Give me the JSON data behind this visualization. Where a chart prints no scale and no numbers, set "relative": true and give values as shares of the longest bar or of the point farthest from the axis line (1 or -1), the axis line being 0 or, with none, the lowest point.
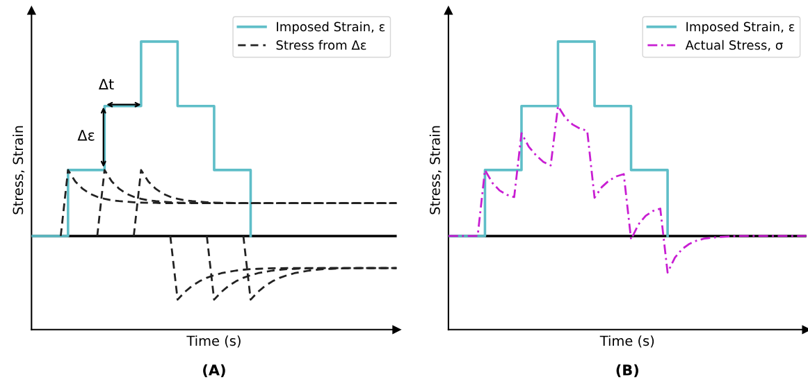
{
  "chart_data": [
    {
      "type": "step",
      "title": "(A)",
      "xlabel": "Time (s)",
      "ylabel": "Stress, Strain",
      "relative": true,
      "tick_labels": false,
      "legend": "top right",
      "categories": [
        null,
        null,
        null,
        null,
        null,
        null,
        null,
        null,
        null,
        null,
        null,
        null,
        null,
        null,
        null,
        null,
        null,
        null,
        null,
        null,
        null,
        null,
        null,
        null,
        null,
        null,
        null,
        null,
        null,
        null,
        null,
        null,
        null,
        null,
        null,
        null,
        null,
        null,
        null,
        null,
        null,
        null,
        null,
        null,
        null,
        null,
        null,
        null,
        null,
        null,
        null
      ],
      "series": [
        {
          "name": "Imposed Strain, ε",
          "color": "#5fbec8",
          "line_style": "solid",
          "values": [
            0.325,
            0.325,
            0.325,
            0.325,
            0.325,
            0.554,
            0.554,
            0.554,
            0.554,
            0.554,
            0.776,
            0.776,
            0.776,
            0.776,
            0.776,
            1.0,
            1.0,
            1.0,
            1.0,
            1.0,
            0.776,
            0.776,
            0.776,
            0.776,
            0.776,
            0.554,
            0.554,
            0.554,
            0.554,
            0.554,
            0.325,
            null,
            null,
            null,
            null,
            null,
            null,
            null,
            null,
            null,
            null,
            null,
            null,
            null,
            null,
            null,
            null,
            null,
            null,
            null,
            null
          ]
        },
        {
          "name": "Stress from Δε",
          "color": "#222222",
          "type": "line",
          "line_style": "dashed",
          "values": [
            null,
            null,
            null,
            null,
            0.325,
            0.554,
            0.514,
            0.489,
            0.472,
            0.461,
            0.454,
            0.449,
            0.446,
            0.444,
            0.442,
            0.441,
            0.44,
            0.44,
            0.439,
            0.439,
            0.439,
            0.439,
            0.439,
            0.439,
            0.439,
            0.439,
            0.439,
            0.439,
            0.439,
            0.439,
            0.439,
            0.439,
            0.439,
            0.439,
            0.439,
            0.439,
            0.439,
            0.439,
            0.439,
            0.439,
            0.439,
            0.439,
            0.439,
            0.439,
            0.439,
            0.439,
            0.439,
            0.439,
            0.439,
            0.439,
            0.439
          ]
        },
        {
          "color": "#222222",
          "type": "line",
          "line_style": "dashed",
          "values": [
            null,
            null,
            null,
            null,
            null,
            null,
            null,
            null,
            null,
            0.325,
            0.554,
            0.514,
            0.489,
            0.472,
            0.461,
            0.454,
            0.449,
            0.446,
            0.444,
            0.442,
            0.441,
            0.44,
            0.44,
            0.439,
            0.439,
            0.439,
            0.439,
            0.439,
            0.439,
            0.439,
            0.439,
            0.439,
            0.439,
            0.439,
            0.439,
            0.439,
            0.439,
            0.439,
            0.439,
            0.439,
            0.439,
            0.439,
            0.439,
            0.439,
            0.439,
            0.439,
            0.439,
            0.439,
            0.439,
            0.439,
            0.439
          ]
        },
        {
          "color": "#222222",
          "type": "line",
          "line_style": "dashed",
          "values": [
            null,
            null,
            null,
            null,
            null,
            null,
            null,
            null,
            null,
            null,
            null,
            null,
            null,
            null,
            0.325,
            0.554,
            0.514,
            0.489,
            0.472,
            0.461,
            0.454,
            0.449,
            0.446,
            0.444,
            0.442,
            0.441,
            0.44,
            0.44,
            0.439,
            0.439,
            0.439,
            0.439,
            0.439,
            0.439,
            0.439,
            0.439,
            0.439,
            0.439,
            0.439,
            0.439,
            0.439,
            0.439,
            0.439,
            0.439,
            0.439,
            0.439,
            0.439,
            0.439,
            0.439,
            0.439,
            0.439
          ]
        },
        {
          "color": "#222222",
          "type": "line",
          "line_style": "dashed",
          "values": [
            null,
            null,
            null,
            null,
            null,
            null,
            null,
            null,
            null,
            null,
            null,
            null,
            null,
            null,
            null,
            null,
            null,
            null,
            null,
            0.325,
            0.104,
            0.131,
            0.152,
            0.168,
            0.18,
            0.189,
            0.196,
            0.201,
            0.205,
            0.208,
            0.21,
            0.211,
            0.212,
            0.213,
            0.213,
            0.214,
            0.214,
            0.214,
            0.214,
            0.214,
            0.214,
            0.214,
            0.214,
            0.214,
            0.214,
            0.214,
            0.214,
            0.214,
            0.214,
            0.214,
            0.214
          ]
        },
        {
          "color": "#222222",
          "type": "line",
          "line_style": "dashed",
          "values": [
            null,
            null,
            null,
            null,
            null,
            null,
            null,
            null,
            null,
            null,
            null,
            null,
            null,
            null,
            null,
            null,
            null,
            null,
            null,
            null,
            null,
            null,
            null,
            null,
            0.325,
            0.104,
            0.131,
            0.152,
            0.168,
            0.18,
            0.189,
            0.196,
            0.201,
            0.205,
            0.208,
            0.21,
            0.211,
            0.212,
            0.213,
            0.213,
            0.214,
            0.214,
            0.214,
            0.214,
            0.214,
            0.214,
            0.214,
            0.214,
            0.214,
            0.214,
            0.214
          ]
        },
        {
          "color": "#222222",
          "type": "line",
          "line_style": "dashed",
          "values": [
            null,
            null,
            null,
            null,
            null,
            null,
            null,
            null,
            null,
            null,
            null,
            null,
            null,
            null,
            null,
            null,
            null,
            null,
            null,
            null,
            null,
            null,
            null,
            null,
            null,
            null,
            null,
            null,
            null,
            0.325,
            0.104,
            0.131,
            0.152,
            0.168,
            0.18,
            0.189,
            0.196,
            0.201,
            0.205,
            0.208,
            0.21,
            0.211,
            0.212,
            0.213,
            0.213,
            0.214,
            0.214,
            0.214,
            0.214,
            0.214,
            0.214
          ]
        }
      ],
      "ref_lines": [
        {
          "axis": "y",
          "value": 0.325,
          "color": "#000000"
        }
      ],
      "annotations": [
        "Δt",
        "Δε"
      ]
    },
    {
      "type": "step",
      "title": "(B)",
      "xlabel": "Time (s)",
      "ylabel": "Stress, Strain",
      "relative": true,
      "tick_labels": false,
      "legend": "top right",
      "categories": [
        null,
        null,
        null,
        null,
        null,
        null,
        null,
        null,
        null,
        null,
        null,
        null,
        null,
        null,
        null,
        null,
        null,
        null,
        null,
        null,
        null,
        null,
        null,
        null,
        null,
        null,
        null,
        null,
        null,
        null,
        null,
        null,
        null,
        null,
        null,
        null,
        null,
        null,
        null,
        null,
        null,
        null,
        null,
        null,
        null,
        null,
        null,
        null,
        null,
        null
      ],
      "series": [
        {
          "name": "Imposed Strain, ε",
          "color": "#5fbec8",
          "line_style": "solid",
          "values": [
            0.325,
            0.325,
            0.325,
            0.325,
            0.325,
            0.554,
            0.554,
            0.554,
            0.554,
            0.554,
            0.776,
            0.776,
            0.776,
            0.776,
            0.776,
            1.0,
            1.0,
            1.0,
            1.0,
            1.0,
            0.776,
            0.776,
            0.776,
            0.776,
            0.776,
            0.554,
            0.554,
            0.554,
            0.554,
            0.554,
            0.325,
            null,
            null,
            null,
            null,
            null,
            null,
            null,
            null,
            null,
            null,
            null,
            null,
            null,
            null,
            null,
            null,
            null,
            null,
            null
          ]
        },
        {
          "name": "Actual Stress, σ",
          "color": "#c81ed2",
          "type": "line",
          "line_style": "dashdot",
          "values": [
            0.325,
            0.325,
            0.325,
            0.325,
            0.325,
            0.554,
            0.51,
            0.483,
            0.468,
            0.46,
            0.682,
            0.635,
            0.605,
            0.582,
            0.57,
            0.776,
            0.735,
            0.712,
            0.698,
            0.69,
            0.458,
            0.495,
            0.518,
            0.532,
            0.54,
            0.313,
            0.365,
            0.395,
            0.412,
            0.42,
            0.198,
            0.25,
            0.28,
            0.298,
            0.309,
            0.316,
            0.319,
            0.321,
            0.323,
            0.324,
            0.325,
            0.325,
            0.325,
            0.325,
            0.325,
            0.325,
            0.325,
            0.325,
            0.325,
            0.325
          ]
        }
      ],
      "ref_lines": [
        {
          "axis": "y",
          "value": 0.325,
          "color": "#000000"
        }
      ]
    }
  ]
}
